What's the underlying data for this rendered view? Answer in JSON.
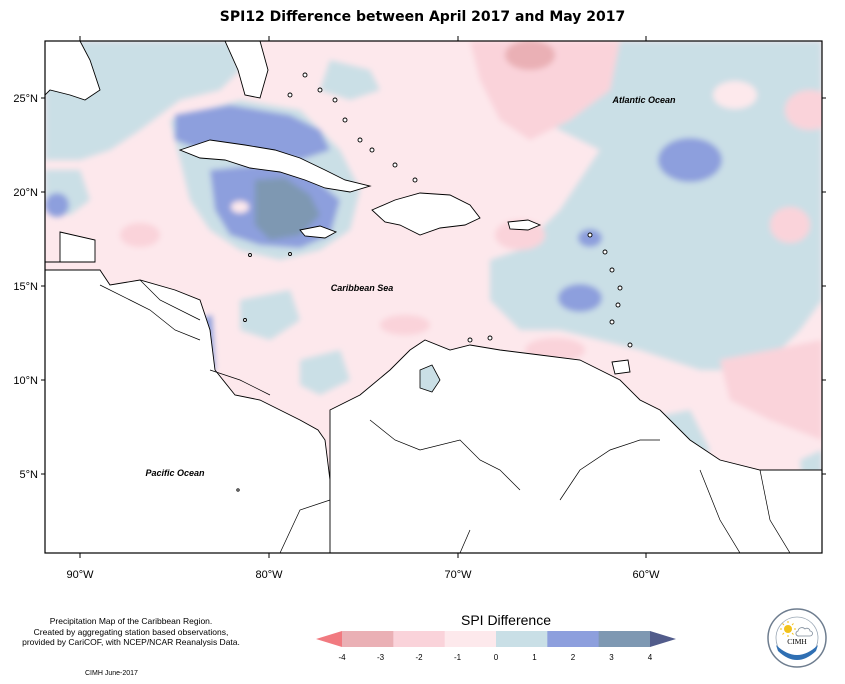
{
  "title": "SPI12 Difference between April 2017 and May 2017",
  "map": {
    "lat_labels": [
      "25°N",
      "20°N",
      "15°N",
      "10°N",
      "5°N"
    ],
    "lon_labels": [
      "90°W",
      "80°W",
      "70°W",
      "60°W"
    ],
    "place_labels": {
      "atlantic": "Atlantic Ocean",
      "caribbean": "Caribbean Sea",
      "pacific": "Pacific Ocean"
    }
  },
  "legend": {
    "title": "SPI Difference",
    "ticks": [
      "-4",
      "-3",
      "-2",
      "-1",
      "0",
      "1",
      "2",
      "3",
      "4"
    ],
    "colors": [
      "#f17a80",
      "#eab0b5",
      "#fad3da",
      "#fde9ec",
      "#c9dfe6",
      "#8d9fdd",
      "#7e98b2",
      "#525c8b"
    ]
  },
  "credits": {
    "line1": "Precipitation Map of the Caribbean Region.",
    "line2": "Created by aggregating station based observations,",
    "line3": "provided by CariCOF, with NCEP/NCAR Reanalysis Data.",
    "date": "CIMH June-2017"
  },
  "logo": {
    "text": "CIMH",
    "ring_text": "Caribbean Institute for Meteorology and Hydrology"
  }
}
